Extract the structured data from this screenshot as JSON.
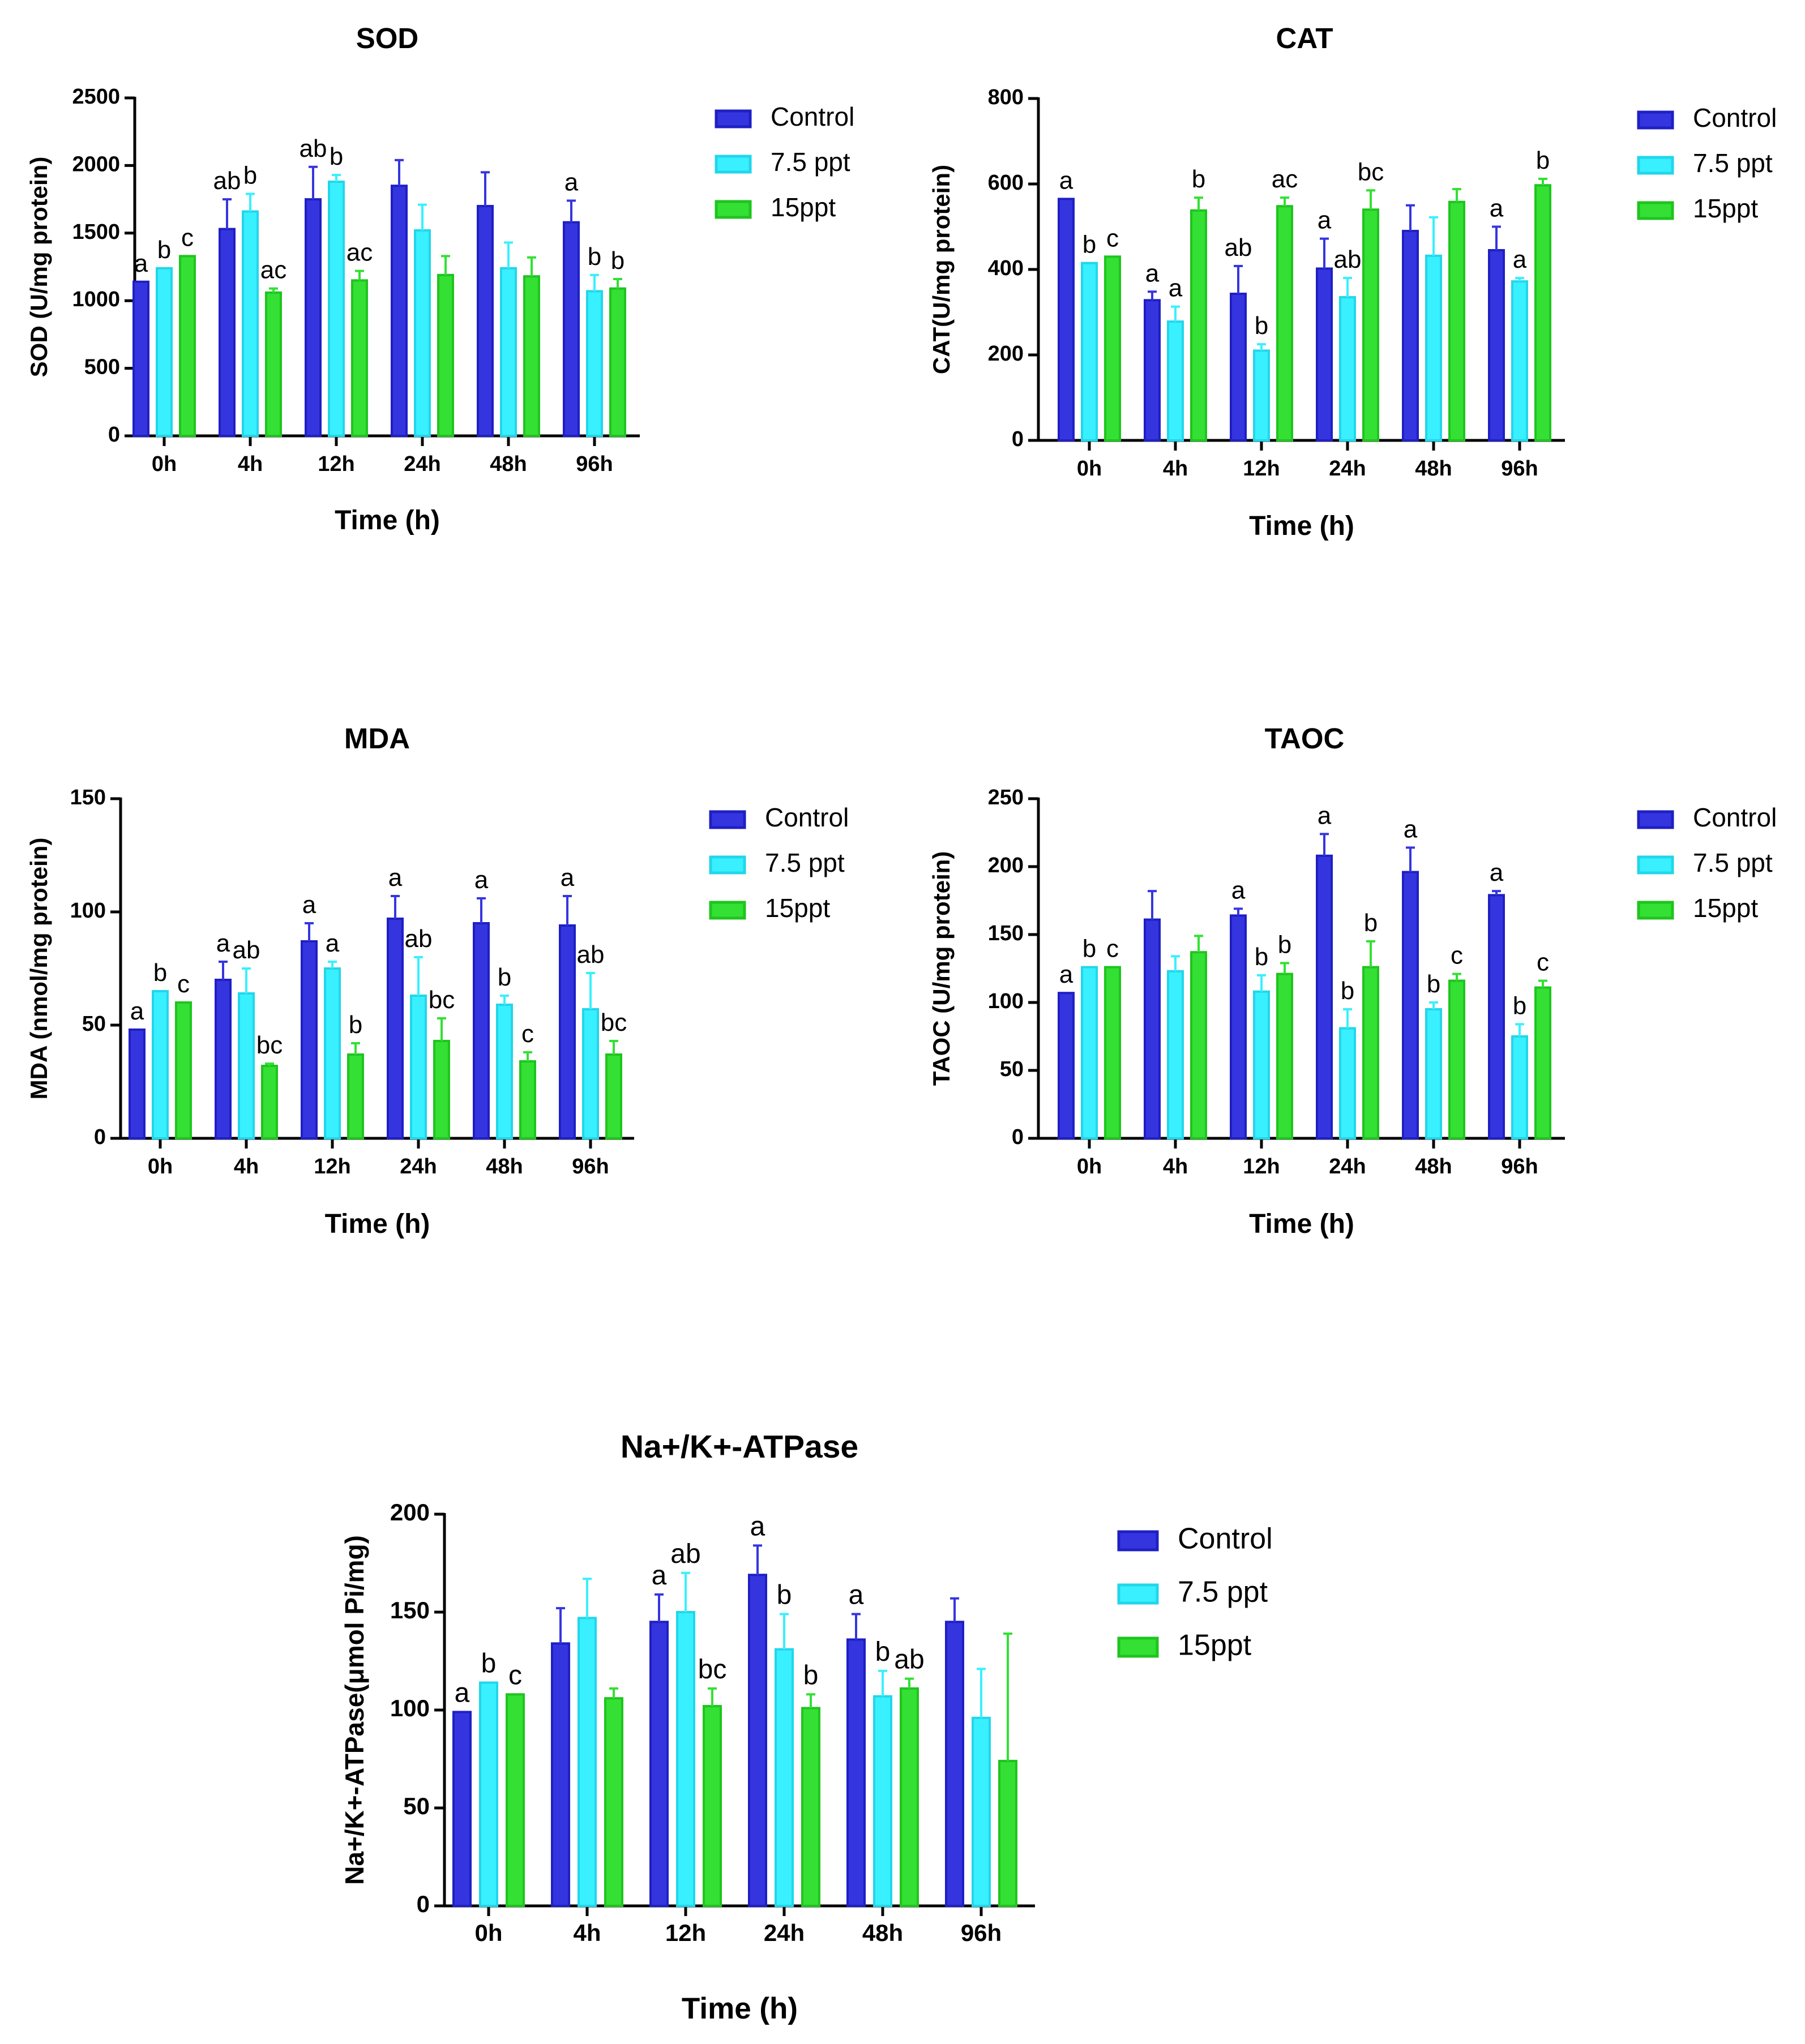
{
  "series_colors": {
    "Control": {
      "fill": "#3535e0",
      "stroke": "#1f1fc4"
    },
    "7.5 ppt": {
      "fill": "#38f0ff",
      "stroke": "#22d6ea"
    },
    "15ppt": {
      "fill": "#33e033",
      "stroke": "#1fc41f"
    }
  },
  "chart_data": [
    {
      "id": "sod",
      "type": "bar",
      "title": "SOD",
      "ylabel": "SOD (U/mg protein)",
      "xlabel": "Time (h)",
      "ylim": [
        0,
        2500
      ],
      "yticks": [
        0,
        500,
        1000,
        1500,
        2000,
        2500
      ],
      "ytick_labels": [
        "0",
        "500",
        "1000",
        "1500",
        "2000",
        "2500"
      ],
      "categories": [
        "0h",
        "4h",
        "12h",
        "24h",
        "48h",
        "96h"
      ],
      "legend": [
        "Control",
        "7.5 ppt",
        "15ppt"
      ],
      "series": [
        {
          "name": "Control",
          "values": [
            1140,
            1530,
            1750,
            1850,
            1700,
            1580
          ],
          "errors": [
            0,
            220,
            240,
            190,
            250,
            160
          ],
          "letters": [
            "a",
            "ab",
            "ab",
            "",
            "",
            "a"
          ]
        },
        {
          "name": "7.5 ppt",
          "values": [
            1240,
            1660,
            1880,
            1520,
            1240,
            1070
          ],
          "errors": [
            0,
            130,
            50,
            190,
            190,
            120
          ],
          "letters": [
            "b",
            "b",
            "b",
            "",
            "",
            "b"
          ]
        },
        {
          "name": "15ppt",
          "values": [
            1330,
            1060,
            1150,
            1190,
            1180,
            1090
          ],
          "errors": [
            0,
            30,
            70,
            140,
            140,
            70
          ],
          "letters": [
            "c",
            "ac",
            "ac",
            "",
            "",
            "b"
          ]
        }
      ]
    },
    {
      "id": "cat",
      "type": "bar",
      "title": "CAT",
      "ylabel": "CAT(U/mg protein)",
      "xlabel": "Time (h)",
      "ylim": [
        0,
        800
      ],
      "yticks": [
        0,
        200,
        400,
        600,
        800
      ],
      "ytick_labels": [
        "0",
        "200",
        "400",
        "600",
        "800"
      ],
      "categories": [
        "0h",
        "4h",
        "12h",
        "24h",
        "48h",
        "96h"
      ],
      "legend": [
        "Control",
        "7.5 ppt",
        "15ppt"
      ],
      "series": [
        {
          "name": "Control",
          "values": [
            565,
            328,
            343,
            402,
            490,
            445
          ],
          "errors": [
            0,
            20,
            65,
            70,
            60,
            55
          ],
          "letters": [
            "a",
            "a",
            "ab",
            "a",
            "",
            "a"
          ]
        },
        {
          "name": "7.5 ppt",
          "values": [
            415,
            278,
            210,
            335,
            432,
            372
          ],
          "errors": [
            0,
            35,
            15,
            45,
            90,
            8
          ],
          "letters": [
            "b",
            "a",
            "b",
            "ab",
            "",
            "a"
          ]
        },
        {
          "name": "15ppt",
          "values": [
            430,
            538,
            548,
            540,
            558,
            597
          ],
          "errors": [
            0,
            30,
            20,
            45,
            30,
            15
          ],
          "letters": [
            "c",
            "b",
            "ac",
            "bc",
            "",
            "b"
          ]
        }
      ]
    },
    {
      "id": "mda",
      "type": "bar",
      "title": "MDA",
      "ylabel": "MDA (nmol/mg protein)",
      "xlabel": "Time (h)",
      "ylim": [
        0,
        150
      ],
      "yticks": [
        0,
        50,
        100,
        150
      ],
      "ytick_labels": [
        "0",
        "50",
        "100",
        "150"
      ],
      "categories": [
        "0h",
        "4h",
        "12h",
        "24h",
        "48h",
        "96h"
      ],
      "legend": [
        "Control",
        "7.5 ppt",
        "15ppt"
      ],
      "series": [
        {
          "name": "Control",
          "values": [
            48,
            70,
            87,
            97,
            95,
            94
          ],
          "errors": [
            0,
            8,
            8,
            10,
            11,
            13
          ],
          "letters": [
            "a",
            "a",
            "a",
            "a",
            "a",
            "a"
          ]
        },
        {
          "name": "7.5 ppt",
          "values": [
            65,
            64,
            75,
            63,
            59,
            57
          ],
          "errors": [
            0,
            11,
            3,
            17,
            4,
            16
          ],
          "letters": [
            "b",
            "ab",
            "a",
            "ab",
            "b",
            "ab"
          ]
        },
        {
          "name": "15ppt",
          "values": [
            60,
            32,
            37,
            43,
            34,
            37
          ],
          "errors": [
            0,
            1,
            5,
            10,
            4,
            6
          ],
          "letters": [
            "c",
            "bc",
            "b",
            "bc",
            "c",
            "bc"
          ]
        }
      ]
    },
    {
      "id": "taoc",
      "type": "bar",
      "title": "TAOC",
      "ylabel": "TAOC (U/mg protein)",
      "xlabel": "Time (h)",
      "ylim": [
        0,
        250
      ],
      "yticks": [
        0,
        50,
        100,
        150,
        200,
        250
      ],
      "ytick_labels": [
        "0",
        "50",
        "100",
        "150",
        "200",
        "250"
      ],
      "categories": [
        "0h",
        "4h",
        "12h",
        "24h",
        "48h",
        "96h"
      ],
      "legend": [
        "Control",
        "7.5 ppt",
        "15ppt"
      ],
      "series": [
        {
          "name": "Control",
          "values": [
            107,
            161,
            164,
            208,
            196,
            179
          ],
          "errors": [
            0,
            21,
            5,
            16,
            18,
            3
          ],
          "letters": [
            "a",
            "",
            "a",
            "a",
            "a",
            "a"
          ]
        },
        {
          "name": "7.5 ppt",
          "values": [
            126,
            123,
            108,
            81,
            95,
            75
          ],
          "errors": [
            0,
            11,
            12,
            14,
            5,
            9
          ],
          "letters": [
            "b",
            "",
            "b",
            "b",
            "b",
            "b"
          ]
        },
        {
          "name": "15ppt",
          "values": [
            126,
            137,
            121,
            126,
            116,
            111
          ],
          "errors": [
            0,
            12,
            8,
            19,
            5,
            5
          ],
          "letters": [
            "c",
            "",
            "b",
            "b",
            "c",
            "c"
          ]
        }
      ]
    },
    {
      "id": "atpase",
      "type": "bar",
      "title": "Na+/K+-ATPase",
      "ylabel": "Na+/K+-ATPase(μmol Pi/mg)",
      "xlabel": "Time (h)",
      "ylim": [
        0,
        200
      ],
      "yticks": [
        0,
        50,
        100,
        150,
        200
      ],
      "ytick_labels": [
        "0",
        "50",
        "100",
        "150",
        "200"
      ],
      "categories": [
        "0h",
        "4h",
        "12h",
        "24h",
        "48h",
        "96h"
      ],
      "legend": [
        "Control",
        "7.5 ppt",
        "15ppt"
      ],
      "series": [
        {
          "name": "Control",
          "values": [
            99,
            134,
            145,
            169,
            136,
            145
          ],
          "errors": [
            0,
            18,
            14,
            15,
            13,
            12
          ],
          "letters": [
            "a",
            "",
            "a",
            "a",
            "a",
            ""
          ]
        },
        {
          "name": "7.5 ppt",
          "values": [
            114,
            147,
            150,
            131,
            107,
            96
          ],
          "errors": [
            0,
            20,
            20,
            18,
            13,
            25
          ],
          "letters": [
            "b",
            "",
            "ab",
            "b",
            "b",
            ""
          ]
        },
        {
          "name": "15ppt",
          "values": [
            108,
            106,
            102,
            101,
            111,
            74
          ],
          "errors": [
            0,
            5,
            9,
            7,
            5,
            65
          ],
          "letters": [
            "c",
            "",
            "bc",
            "b",
            "ab",
            ""
          ]
        }
      ]
    }
  ]
}
